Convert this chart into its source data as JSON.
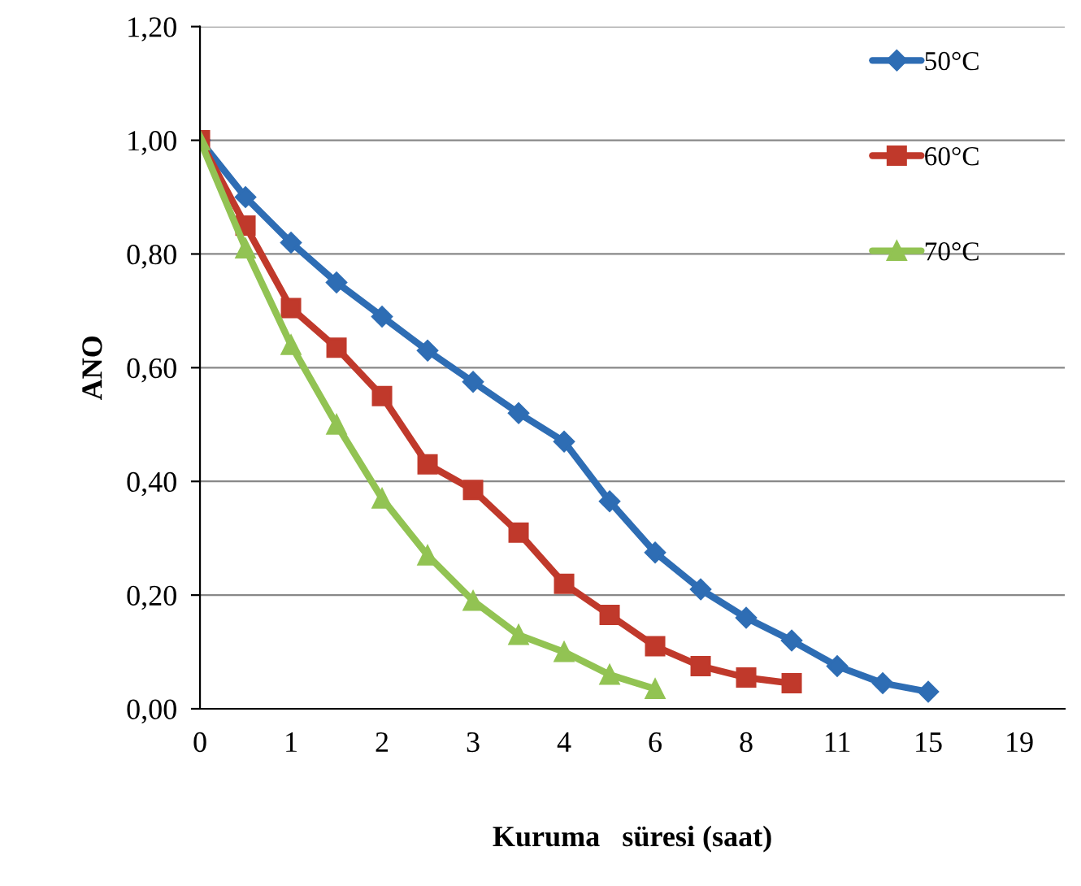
{
  "chart_data": {
    "type": "line",
    "xlabel": "Kuruma   süresi (saat)",
    "ylabel": "ANO",
    "categories": [
      "0",
      null,
      "1",
      null,
      "2",
      null,
      "3",
      null,
      "4",
      null,
      "6",
      null,
      "8",
      null,
      "11",
      null,
      "15",
      null,
      "19",
      null
    ],
    "series": [
      {
        "name": "50°C",
        "color": "#2e6db4",
        "marker": "diamond",
        "values": [
          1.0,
          0.9,
          0.82,
          0.75,
          0.69,
          0.63,
          0.575,
          0.52,
          0.47,
          0.365,
          0.275,
          0.21,
          0.16,
          0.12,
          0.075,
          0.045,
          0.03,
          null,
          null,
          null
        ]
      },
      {
        "name": "60°C",
        "color": "#c0392b",
        "marker": "square",
        "values": [
          1.0,
          0.85,
          0.705,
          0.635,
          0.55,
          0.43,
          0.385,
          0.31,
          0.22,
          0.165,
          0.11,
          0.075,
          0.055,
          0.045,
          null,
          null,
          null,
          null,
          null,
          null
        ]
      },
      {
        "name": "70°C",
        "color": "#92c353",
        "marker": "triangle",
        "values": [
          1.0,
          0.81,
          0.64,
          0.5,
          0.37,
          0.27,
          0.19,
          0.13,
          0.1,
          0.06,
          0.035,
          null,
          null,
          null,
          null,
          null,
          null,
          null,
          null,
          null
        ]
      }
    ],
    "ylim": [
      0,
      1.2
    ],
    "yticks": [
      {
        "value": 0,
        "label": "0,00"
      },
      {
        "value": 0.2,
        "label": "0,20"
      },
      {
        "value": 0.4,
        "label": "0,40"
      },
      {
        "value": 0.6,
        "label": "0,60"
      },
      {
        "value": 0.8,
        "label": "0,80"
      },
      {
        "value": 1.0,
        "label": "1,00"
      },
      {
        "value": 1.2,
        "label": "1,20"
      }
    ],
    "grid": "y",
    "legend": "top right",
    "line_style": "solid"
  }
}
